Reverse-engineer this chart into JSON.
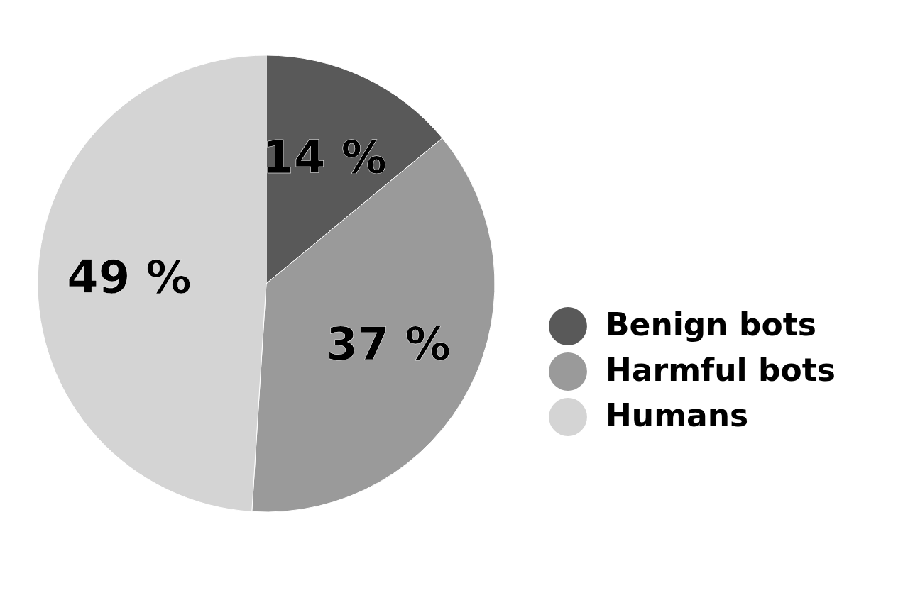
{
  "chart_data": {
    "type": "pie",
    "categories": [
      "Benign bots",
      "Harmful bots",
      "Humans"
    ],
    "values": [
      14,
      37,
      49
    ],
    "colors": [
      "#595959",
      "#9a9a9a",
      "#d4d4d4"
    ],
    "value_labels": [
      "14 %",
      "37 %",
      "49 %"
    ],
    "legend": "right"
  }
}
